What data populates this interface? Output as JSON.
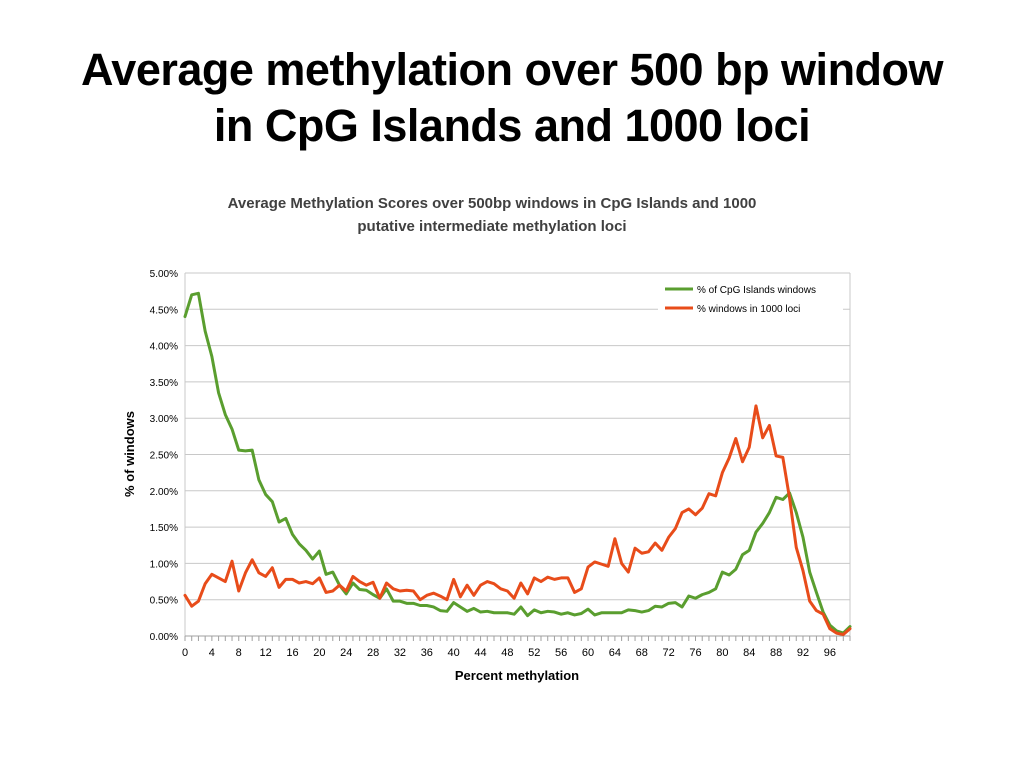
{
  "slide": {
    "title_line1": "Average methylation over 500 bp window",
    "title_line2": "in CpG Islands and 1000 loci"
  },
  "chart_data": {
    "type": "line",
    "title_line1": "Average Methylation Scores over 500bp windows in CpG Islands and 1000",
    "title_line2": "putative intermediate methylation loci",
    "xlabel": "Percent methylation",
    "ylabel": "% of windows",
    "xlim": [
      0,
      99
    ],
    "ylim": [
      0,
      5.0
    ],
    "grid": true,
    "legend": "top-right",
    "x_ticks": [
      "0",
      "4",
      "8",
      "12",
      "16",
      "20",
      "24",
      "28",
      "32",
      "36",
      "40",
      "44",
      "48",
      "52",
      "56",
      "60",
      "64",
      "68",
      "72",
      "76",
      "80",
      "84",
      "88",
      "92",
      "96"
    ],
    "y_ticks": [
      "0.00%",
      "0.50%",
      "1.00%",
      "1.50%",
      "2.00%",
      "2.50%",
      "3.00%",
      "3.50%",
      "4.00%",
      "4.50%",
      "5.00%"
    ],
    "series": [
      {
        "name": "% of CpG Islands windows",
        "color": "#5a9e2f",
        "values": [
          4.4,
          4.7,
          4.72,
          4.2,
          3.85,
          3.35,
          3.05,
          2.85,
          2.56,
          2.55,
          2.56,
          2.15,
          1.95,
          1.85,
          1.57,
          1.62,
          1.4,
          1.27,
          1.18,
          1.06,
          1.17,
          0.85,
          0.88,
          0.7,
          0.58,
          0.73,
          0.64,
          0.63,
          0.57,
          0.52,
          0.65,
          0.48,
          0.48,
          0.45,
          0.45,
          0.42,
          0.42,
          0.4,
          0.35,
          0.34,
          0.46,
          0.4,
          0.34,
          0.38,
          0.33,
          0.34,
          0.32,
          0.32,
          0.32,
          0.3,
          0.4,
          0.28,
          0.36,
          0.32,
          0.34,
          0.33,
          0.3,
          0.32,
          0.29,
          0.31,
          0.37,
          0.29,
          0.32,
          0.32,
          0.32,
          0.32,
          0.36,
          0.35,
          0.33,
          0.35,
          0.41,
          0.4,
          0.45,
          0.46,
          0.4,
          0.55,
          0.52,
          0.57,
          0.6,
          0.65,
          0.88,
          0.84,
          0.92,
          1.12,
          1.18,
          1.43,
          1.55,
          1.7,
          1.91,
          1.88,
          1.97,
          1.7,
          1.36,
          0.88,
          0.6,
          0.33,
          0.15,
          0.07,
          0.04,
          0.13
        ]
      },
      {
        "name": "% windows in 1000 loci",
        "color": "#e84c1a",
        "values": [
          0.56,
          0.41,
          0.48,
          0.72,
          0.85,
          0.8,
          0.75,
          1.03,
          0.62,
          0.87,
          1.05,
          0.87,
          0.82,
          0.94,
          0.67,
          0.78,
          0.78,
          0.73,
          0.75,
          0.72,
          0.8,
          0.6,
          0.62,
          0.7,
          0.62,
          0.82,
          0.75,
          0.7,
          0.74,
          0.52,
          0.73,
          0.65,
          0.62,
          0.63,
          0.62,
          0.5,
          0.56,
          0.59,
          0.55,
          0.5,
          0.78,
          0.54,
          0.7,
          0.56,
          0.7,
          0.75,
          0.72,
          0.65,
          0.62,
          0.52,
          0.73,
          0.58,
          0.8,
          0.75,
          0.81,
          0.78,
          0.8,
          0.8,
          0.6,
          0.65,
          0.95,
          1.02,
          0.99,
          0.96,
          1.34,
          1.0,
          0.88,
          1.21,
          1.14,
          1.16,
          1.28,
          1.18,
          1.36,
          1.48,
          1.7,
          1.75,
          1.67,
          1.76,
          1.96,
          1.93,
          2.25,
          2.45,
          2.72,
          2.4,
          2.6,
          3.17,
          2.73,
          2.9,
          2.48,
          2.46,
          1.9,
          1.22,
          0.9,
          0.48,
          0.35,
          0.3,
          0.1,
          0.04,
          0.02,
          0.1
        ]
      }
    ]
  }
}
